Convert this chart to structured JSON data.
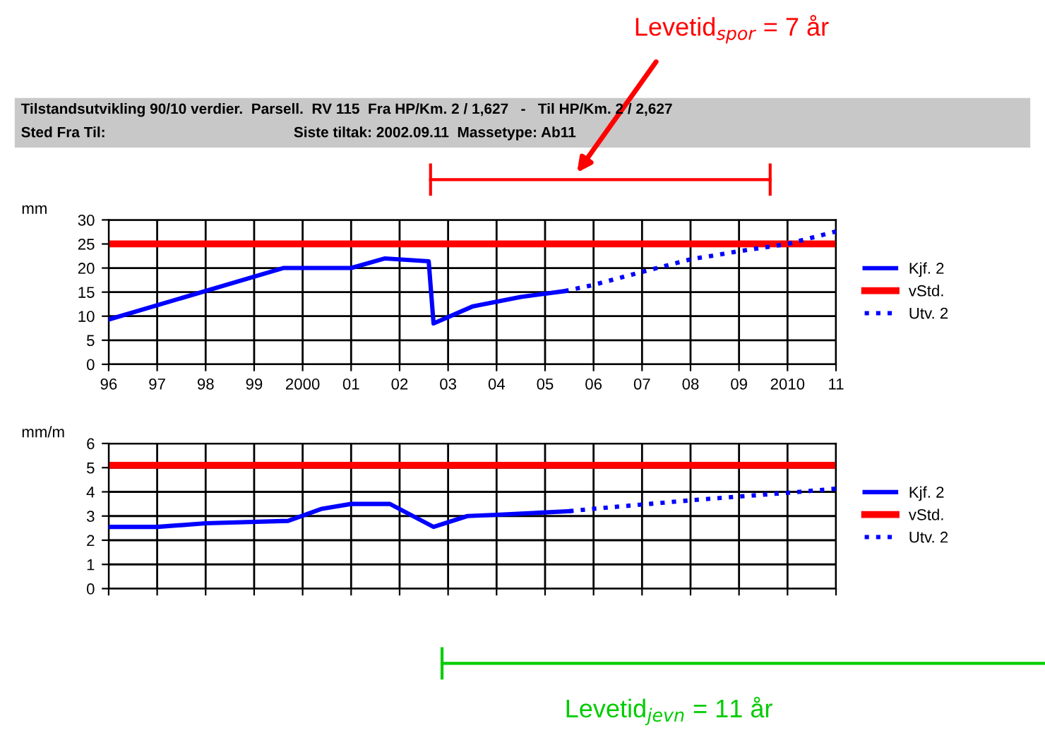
{
  "chart_data": [
    {
      "type": "line",
      "title": "Tilstandsutvikling 90/10 verdier.  Parsell.  RV 115  Fra HP/Km. 2 / 1,627   -   Til HP/Km. 2 / 2,627",
      "subtitle": "Sted Fra Til:                                              Siste tiltak: 2002.09.11  Massetype: Ab11",
      "ylabel": "mm",
      "annotations": [
        "Levetid$_{spor}$ = 7 år",
        "Levetid$_{jevn}$ = 11 år"
      ],
      "xlim": [
        1996,
        2011
      ],
      "ylim": [
        0,
        30
      ],
      "xticks": [
        {
          "value": 1996,
          "label": "96"
        },
        {
          "value": 1997,
          "label": "97"
        },
        {
          "value": 1998,
          "label": "98"
        },
        {
          "value": 1999,
          "label": "99"
        },
        2000,
        {
          "value": 2001,
          "label": "01"
        },
        {
          "value": 2002,
          "label": "02"
        },
        {
          "value": 2003,
          "label": "03"
        },
        {
          "value": 2004,
          "label": "04"
        },
        {
          "value": 2005,
          "label": "05"
        },
        {
          "value": 2006,
          "label": "06"
        },
        {
          "value": 2007,
          "label": "07"
        },
        {
          "value": 2008,
          "label": "08"
        },
        {
          "value": 2009,
          "label": "09"
        },
        2010,
        {
          "value": 2011,
          "label": "11"
        }
      ],
      "yticks": [
        0,
        5,
        10,
        15,
        20,
        25,
        30
      ],
      "grid": true,
      "legend": "right",
      "series": [
        {
          "name": "Kjf. 2",
          "color": "#0000ff",
          "line_style": "solid",
          "x": [
            1996,
            1999.6,
            2001,
            2001.7,
            2002.6,
            2002.7,
            2003.5,
            2004.5,
            2005.4
          ],
          "values": [
            9.3,
            20,
            20,
            22,
            21.4,
            8.5,
            12,
            14,
            15.2
          ]
        },
        {
          "name": "Utv. 2",
          "color": "#0000ff",
          "line_style": "dotted",
          "x": [
            2005.4,
            2006,
            2007,
            2008,
            2009,
            2010,
            2011
          ],
          "values": [
            15.2,
            16.5,
            19.2,
            21.8,
            23.5,
            25,
            27.6
          ]
        }
      ],
      "ref_lines": [
        {
          "axis": "y",
          "value": 25,
          "label": "vStd.",
          "color": "#ff0000"
        }
      ]
    },
    {
      "type": "line",
      "ylabel": "mm/m",
      "tick_labels": "y",
      "xlim": [
        1996,
        2011
      ],
      "ylim": [
        0,
        6
      ],
      "xticks": [
        1996,
        1997,
        1998,
        1999,
        2000,
        2001,
        2002,
        2003,
        2004,
        2005,
        2006,
        2007,
        2008,
        2009,
        2010,
        2011
      ],
      "yticks": [
        0,
        1,
        2,
        3,
        4,
        5,
        6
      ],
      "grid": true,
      "legend": "right",
      "series": [
        {
          "name": "Kjf. 2",
          "color": "#0000ff",
          "line_style": "solid",
          "x": [
            1996,
            1997,
            1998,
            1999.7,
            2000.4,
            2001,
            2001.8,
            2002.7,
            2003.4,
            2004,
            2005.5
          ],
          "values": [
            2.55,
            2.55,
            2.7,
            2.8,
            3.3,
            3.5,
            3.5,
            2.55,
            3.0,
            3.05,
            3.2
          ]
        },
        {
          "name": "Utv. 2",
          "color": "#0000ff",
          "line_style": "dotted",
          "x": [
            2005.5,
            2006,
            2008,
            2010,
            2011
          ],
          "values": [
            3.2,
            3.3,
            3.65,
            3.96,
            4.13
          ]
        }
      ],
      "ref_lines": [
        {
          "axis": "y",
          "value": 5.1,
          "label": "vStd.",
          "color": "#ff0000"
        }
      ]
    }
  ]
}
